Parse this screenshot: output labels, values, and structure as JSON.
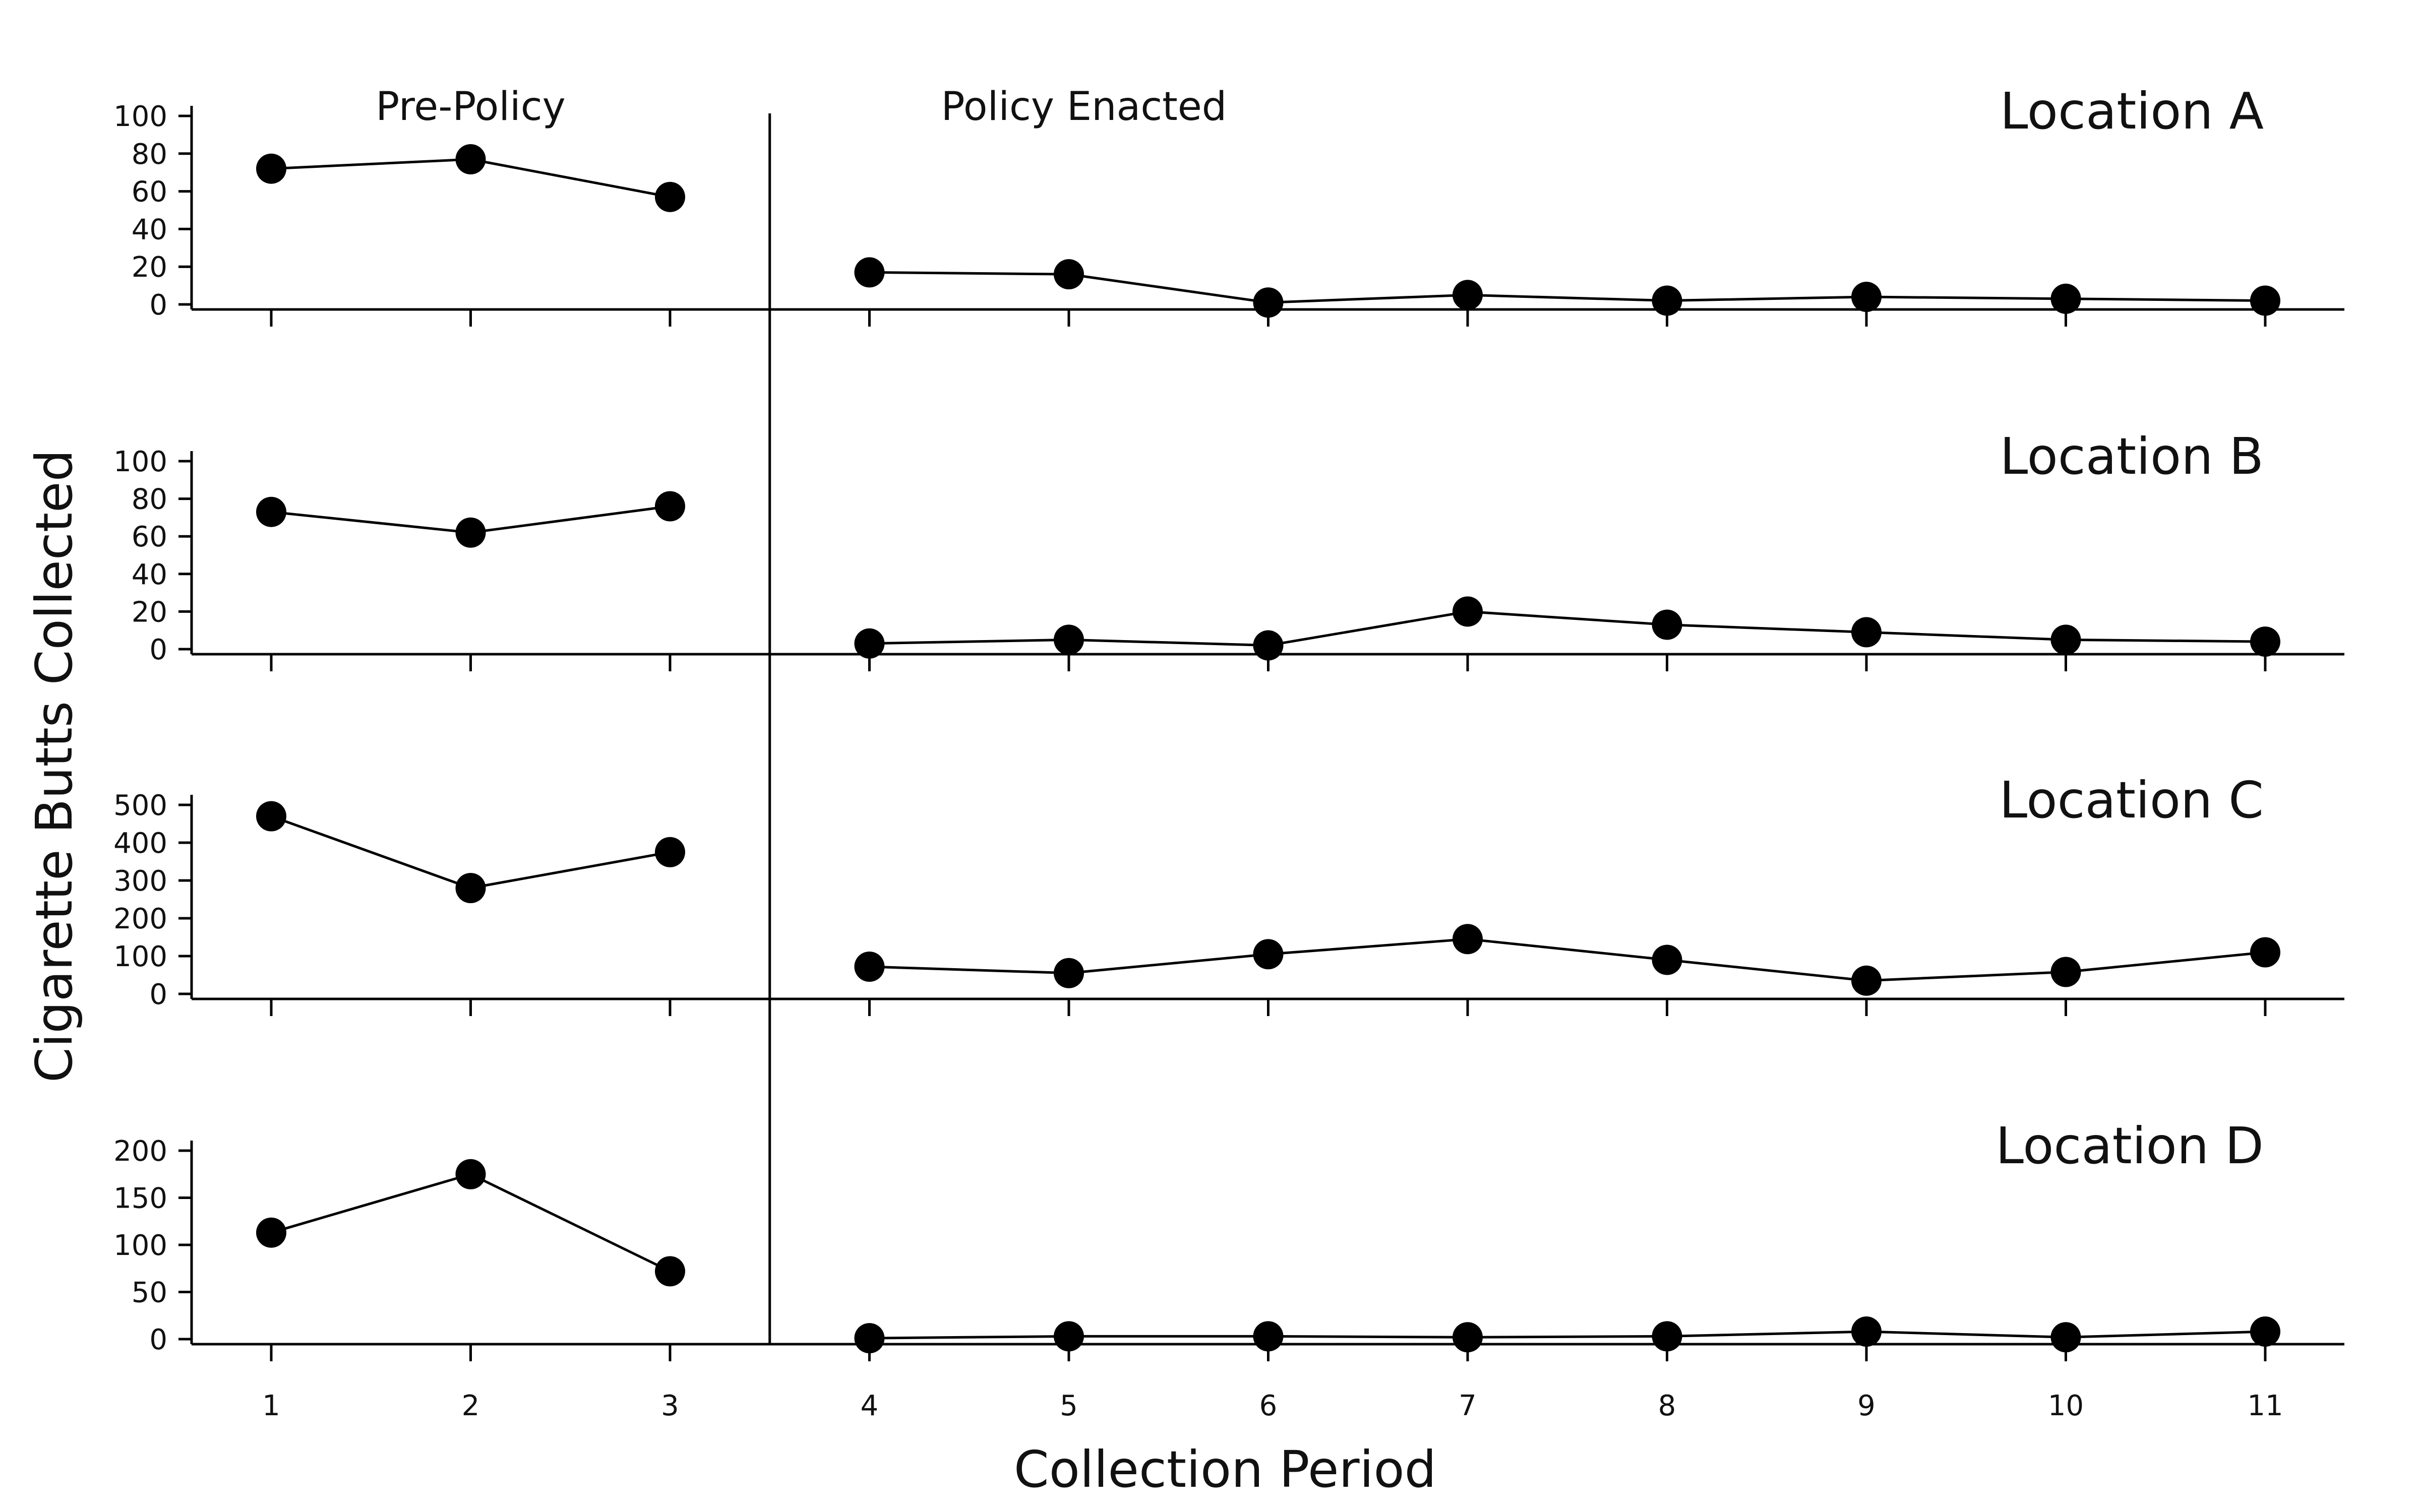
{
  "chart_data": {
    "type": "line",
    "xlabel": "Collection Period",
    "ylabel": "Cigarette Butts Collected",
    "x": [
      1,
      2,
      3,
      4,
      5,
      6,
      7,
      8,
      9,
      10,
      11
    ],
    "phase_labels": [
      "Pre-Policy",
      "Policy Enacted"
    ],
    "phase_change_after": 3,
    "color": "#000000",
    "panels": [
      {
        "title": "Location A",
        "ylim": [
          0,
          100
        ],
        "yticks": [
          0,
          20,
          40,
          60,
          80,
          100
        ],
        "values": [
          72,
          77,
          57,
          17,
          16,
          1,
          5,
          2,
          4,
          3,
          2
        ]
      },
      {
        "title": "Location B",
        "ylim": [
          0,
          100
        ],
        "yticks": [
          0,
          20,
          40,
          60,
          80,
          100
        ],
        "values": [
          73,
          62,
          76,
          3,
          5,
          2,
          20,
          13,
          9,
          5,
          4
        ]
      },
      {
        "title": "Location C",
        "ylim": [
          0,
          500
        ],
        "yticks": [
          0,
          100,
          200,
          300,
          400,
          500
        ],
        "values": [
          470,
          280,
          375,
          72,
          55,
          105,
          145,
          90,
          35,
          58,
          110
        ]
      },
      {
        "title": "Location D",
        "ylim": [
          0,
          200
        ],
        "yticks": [
          0,
          50,
          100,
          150,
          200
        ],
        "values": [
          113,
          175,
          72,
          1,
          3,
          3,
          2,
          3,
          8,
          2,
          8
        ]
      }
    ]
  }
}
